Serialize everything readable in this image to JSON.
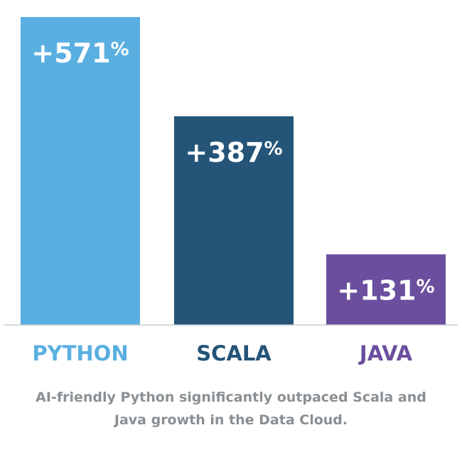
{
  "chart_data": {
    "type": "bar",
    "categories": [
      "PYTHON",
      "SCALA",
      "JAVA"
    ],
    "values": [
      571,
      387,
      131
    ],
    "value_labels": [
      "+571",
      "+387",
      "+131"
    ],
    "value_unit": "%",
    "colors": [
      "#5aafe1",
      "#245478",
      "#6b4f9e"
    ],
    "ylim": [
      0,
      571
    ],
    "grid": false,
    "legend": "none"
  },
  "caption": {
    "line1": "AI-friendly Python significantly outpaced Scala and",
    "line2": "Java growth in the Data Cloud."
  }
}
